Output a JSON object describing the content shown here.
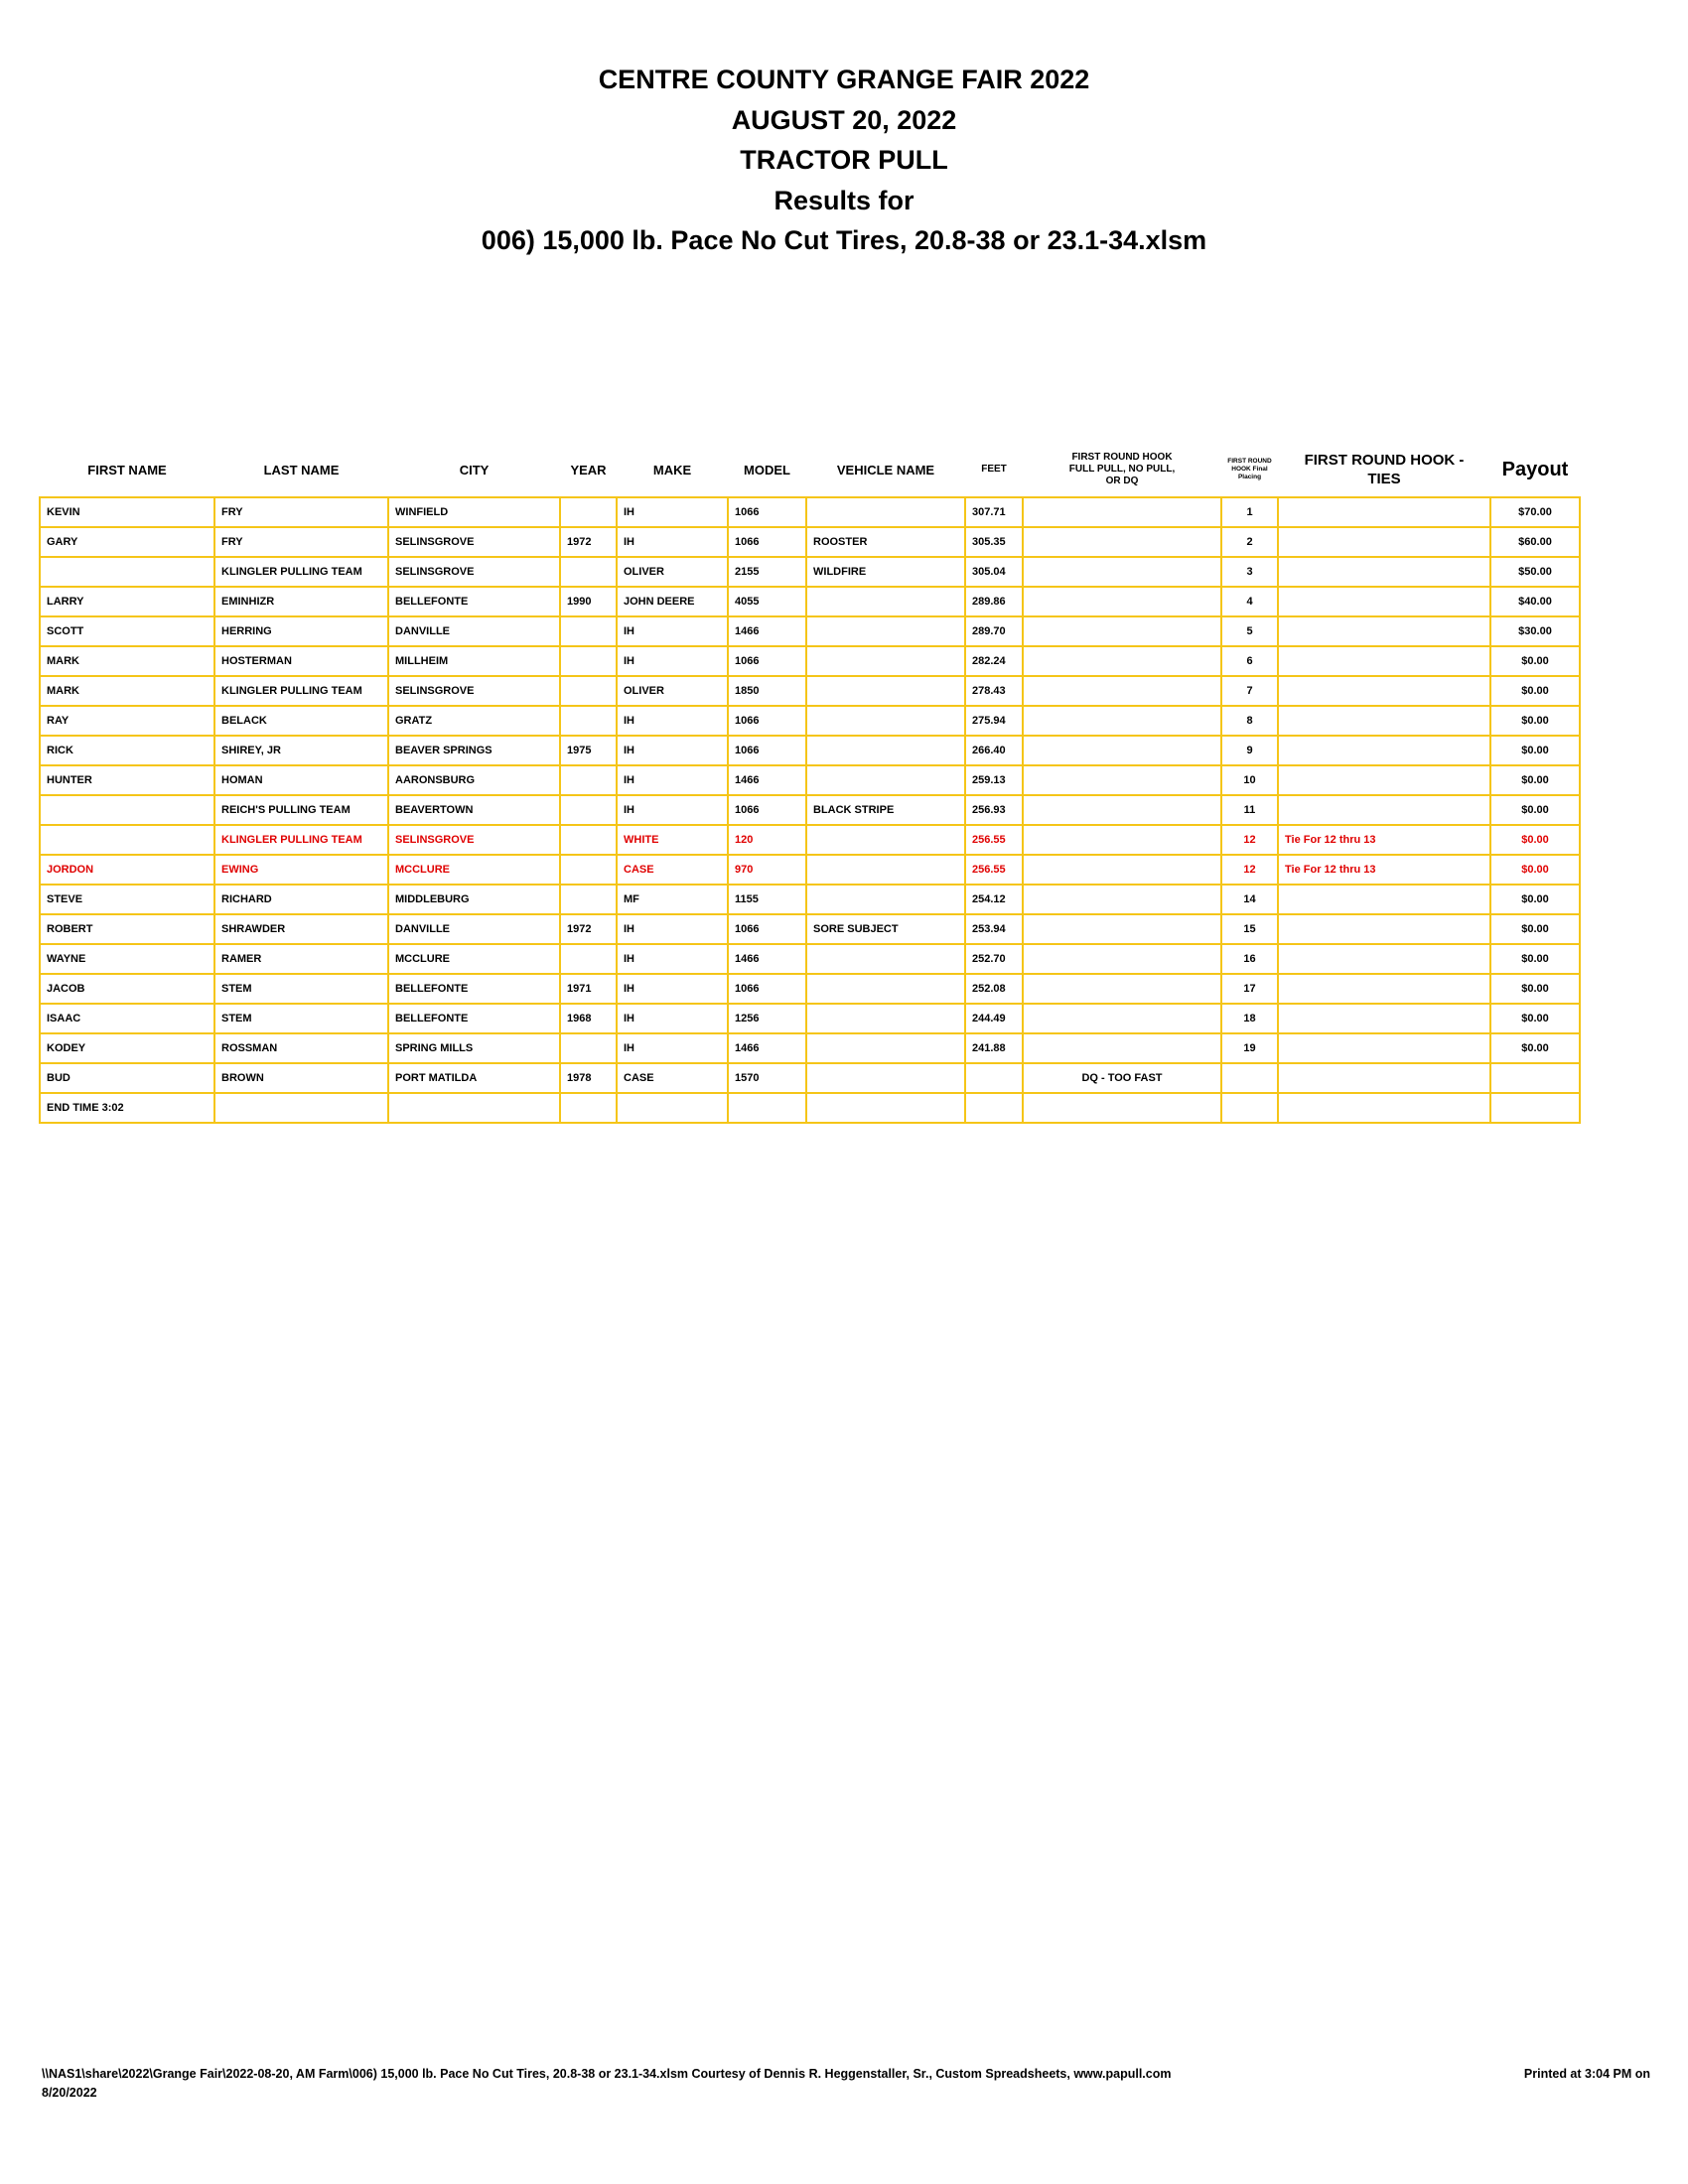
{
  "header": {
    "line1": "CENTRE COUNTY GRANGE FAIR 2022",
    "line2": "AUGUST 20, 2022",
    "line3": "TRACTOR PULL",
    "line4": "Results for",
    "line5": "006) 15,000 lb. Pace No Cut Tires, 20.8-38 or 23.1-34.xlsm"
  },
  "colors": {
    "grid": "#f5c518",
    "tie_text": "#e00000"
  },
  "table": {
    "columns": [
      "FIRST NAME",
      "LAST NAME",
      "CITY",
      "YEAR",
      "MAKE",
      "MODEL",
      "VEHICLE NAME",
      "FEET",
      "FIRST ROUND HOOK FULL PULL, NO PULL, OR DQ",
      "FIRST ROUND HOOK Final Placing",
      "FIRST ROUND HOOK - TIES",
      "Payout"
    ],
    "rows": [
      {
        "first": "KEVIN",
        "last": "FRY",
        "city": "WINFIELD",
        "year": "",
        "make": "IH",
        "model": "1066",
        "vehicle": "",
        "feet": "307.71",
        "status": "",
        "place": "1",
        "ties": "",
        "payout": "$70.00",
        "highlight": false
      },
      {
        "first": "GARY",
        "last": "FRY",
        "city": "SELINSGROVE",
        "year": "1972",
        "make": "IH",
        "model": "1066",
        "vehicle": "ROOSTER",
        "feet": "305.35",
        "status": "",
        "place": "2",
        "ties": "",
        "payout": "$60.00",
        "highlight": false
      },
      {
        "first": "",
        "last": "KLINGLER PULLING TEAM",
        "city": "SELINSGROVE",
        "year": "",
        "make": "OLIVER",
        "model": "2155",
        "vehicle": "WILDFIRE",
        "feet": "305.04",
        "status": "",
        "place": "3",
        "ties": "",
        "payout": "$50.00",
        "highlight": false
      },
      {
        "first": "LARRY",
        "last": "EMINHIZR",
        "city": "BELLEFONTE",
        "year": "1990",
        "make": "JOHN DEERE",
        "model": "4055",
        "vehicle": "",
        "feet": "289.86",
        "status": "",
        "place": "4",
        "ties": "",
        "payout": "$40.00",
        "highlight": false
      },
      {
        "first": "SCOTT",
        "last": "HERRING",
        "city": "DANVILLE",
        "year": "",
        "make": "IH",
        "model": "1466",
        "vehicle": "",
        "feet": "289.70",
        "status": "",
        "place": "5",
        "ties": "",
        "payout": "$30.00",
        "highlight": false
      },
      {
        "first": "MARK",
        "last": "HOSTERMAN",
        "city": "MILLHEIM",
        "year": "",
        "make": "IH",
        "model": "1066",
        "vehicle": "",
        "feet": "282.24",
        "status": "",
        "place": "6",
        "ties": "",
        "payout": "$0.00",
        "highlight": false
      },
      {
        "first": "MARK",
        "last": "KLINGLER PULLING TEAM",
        "city": "SELINSGROVE",
        "year": "",
        "make": "OLIVER",
        "model": "1850",
        "vehicle": "",
        "feet": "278.43",
        "status": "",
        "place": "7",
        "ties": "",
        "payout": "$0.00",
        "highlight": false
      },
      {
        "first": "RAY",
        "last": "BELACK",
        "city": "GRATZ",
        "year": "",
        "make": "IH",
        "model": "1066",
        "vehicle": "",
        "feet": "275.94",
        "status": "",
        "place": "8",
        "ties": "",
        "payout": "$0.00",
        "highlight": false
      },
      {
        "first": "RICK",
        "last": "SHIREY, JR",
        "city": "BEAVER SPRINGS",
        "year": "1975",
        "make": "IH",
        "model": "1066",
        "vehicle": "",
        "feet": "266.40",
        "status": "",
        "place": "9",
        "ties": "",
        "payout": "$0.00",
        "highlight": false
      },
      {
        "first": "HUNTER",
        "last": "HOMAN",
        "city": "AARONSBURG",
        "year": "",
        "make": "IH",
        "model": "1466",
        "vehicle": "",
        "feet": "259.13",
        "status": "",
        "place": "10",
        "ties": "",
        "payout": "$0.00",
        "highlight": false
      },
      {
        "first": "",
        "last": "REICH'S PULLING TEAM",
        "city": "BEAVERTOWN",
        "year": "",
        "make": "IH",
        "model": "1066",
        "vehicle": "BLACK STRIPE",
        "feet": "256.93",
        "status": "",
        "place": "11",
        "ties": "",
        "payout": "$0.00",
        "highlight": false
      },
      {
        "first": "",
        "last": "KLINGLER PULLING TEAM",
        "city": "SELINSGROVE",
        "year": "",
        "make": "WHITE",
        "model": "120",
        "vehicle": "",
        "feet": "256.55",
        "status": "",
        "place": "12",
        "ties": "Tie For 12 thru 13",
        "payout": "$0.00",
        "highlight": true
      },
      {
        "first": "JORDON",
        "last": "EWING",
        "city": "MCCLURE",
        "year": "",
        "make": "CASE",
        "model": "970",
        "vehicle": "",
        "feet": "256.55",
        "status": "",
        "place": "12",
        "ties": "Tie For 12 thru 13",
        "payout": "$0.00",
        "highlight": true
      },
      {
        "first": "STEVE",
        "last": "RICHARD",
        "city": "MIDDLEBURG",
        "year": "",
        "make": "MF",
        "model": "1155",
        "vehicle": "",
        "feet": "254.12",
        "status": "",
        "place": "14",
        "ties": "",
        "payout": "$0.00",
        "highlight": false
      },
      {
        "first": "ROBERT",
        "last": "SHRAWDER",
        "city": "DANVILLE",
        "year": "1972",
        "make": "IH",
        "model": "1066",
        "vehicle": "SORE SUBJECT",
        "feet": "253.94",
        "status": "",
        "place": "15",
        "ties": "",
        "payout": "$0.00",
        "highlight": false
      },
      {
        "first": "WAYNE",
        "last": "RAMER",
        "city": "MCCLURE",
        "year": "",
        "make": "IH",
        "model": "1466",
        "vehicle": "",
        "feet": "252.70",
        "status": "",
        "place": "16",
        "ties": "",
        "payout": "$0.00",
        "highlight": false
      },
      {
        "first": "JACOB",
        "last": "STEM",
        "city": "BELLEFONTE",
        "year": "1971",
        "make": "IH",
        "model": "1066",
        "vehicle": "",
        "feet": "252.08",
        "status": "",
        "place": "17",
        "ties": "",
        "payout": "$0.00",
        "highlight": false
      },
      {
        "first": "ISAAC",
        "last": "STEM",
        "city": "BELLEFONTE",
        "year": "1968",
        "make": "IH",
        "model": "1256",
        "vehicle": "",
        "feet": "244.49",
        "status": "",
        "place": "18",
        "ties": "",
        "payout": "$0.00",
        "highlight": false
      },
      {
        "first": "KODEY",
        "last": "ROSSMAN",
        "city": "SPRING MILLS",
        "year": "",
        "make": "IH",
        "model": "1466",
        "vehicle": "",
        "feet": "241.88",
        "status": "",
        "place": "19",
        "ties": "",
        "payout": "$0.00",
        "highlight": false
      },
      {
        "first": "BUD",
        "last": "BROWN",
        "city": "PORT MATILDA",
        "year": "1978",
        "make": "CASE",
        "model": "1570",
        "vehicle": "",
        "feet": "",
        "status": "DQ - TOO FAST",
        "place": "",
        "ties": "",
        "payout": "",
        "highlight": false
      },
      {
        "first": "END TIME 3:02",
        "last": "",
        "city": "",
        "year": "",
        "make": "",
        "model": "",
        "vehicle": "",
        "feet": "",
        "status": "",
        "place": "",
        "ties": "",
        "payout": "",
        "highlight": false
      }
    ]
  },
  "footer": {
    "path": "\\\\NAS1\\share\\2022\\Grange Fair\\2022-08-20, AM Farm\\006) 15,000 lb. Pace No Cut Tires, 20.8-38 or 23.1-34.xlsm  Courtesy of Dennis R. Heggenstaller, Sr., Custom Spreadsheets, www.papull.com",
    "printed": "Printed at 3:04 PM on",
    "date": "8/20/2022"
  }
}
